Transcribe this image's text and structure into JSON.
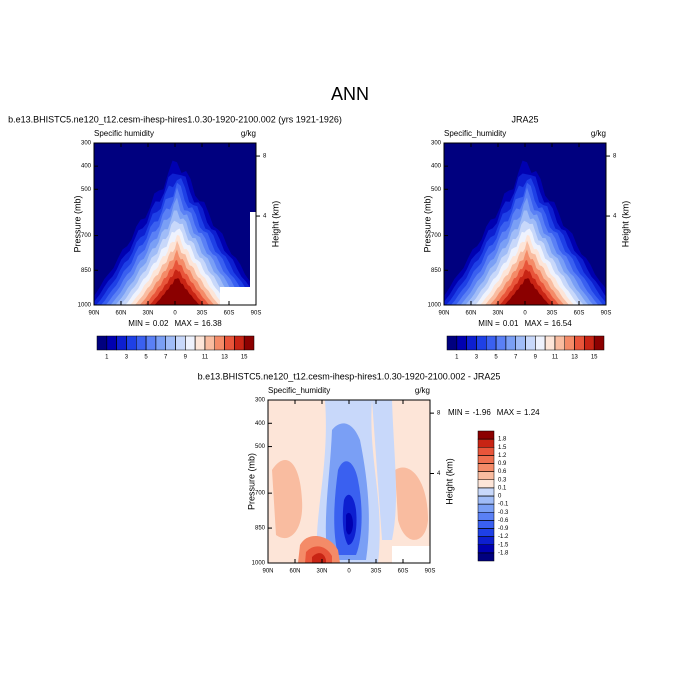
{
  "title": "ANN",
  "chart_data": [
    {
      "type": "contour",
      "title": "b.e13.BHISTC5.ne120_t12.cesm-ihesp-hires1.0.30-1920-2100.002 (yrs 1921-1926)",
      "left_label": "Specific humidity",
      "right_label": "g/kg",
      "ylabel": "Pressure (mb)",
      "y2label": "Height (km)",
      "xlim": [
        90,
        -90
      ],
      "xticks": [
        {
          "value": 90,
          "label": "90N"
        },
        {
          "value": 60,
          "label": "60N"
        },
        {
          "value": 30,
          "label": "30N"
        },
        0,
        {
          "value": -30,
          "label": "30S"
        },
        {
          "value": -60,
          "label": "60S"
        },
        {
          "value": -90,
          "label": "90S"
        }
      ],
      "ylim": [
        300,
        1000
      ],
      "yticks": [
        300,
        400,
        500,
        700,
        850,
        1000
      ],
      "y2lim": [
        8.87,
        -1.93
      ],
      "y2ticks": [
        8,
        4
      ],
      "min_label": "MIN =",
      "min": 0.02,
      "max_label": "MAX =",
      "max": 16.38,
      "colorbar": {
        "orientation": "horizontal",
        "levels": [
          1,
          2,
          3,
          4,
          5,
          6,
          7,
          8,
          9,
          10,
          11,
          12,
          13,
          14,
          15
        ],
        "ticks": [
          1,
          3,
          5,
          7,
          9,
          11,
          13,
          15
        ],
        "colors": [
          "#00007f",
          "#0000b0",
          "#0d1fd0",
          "#1e40e6",
          "#3a60f0",
          "#5a80f5",
          "#7a9ff5",
          "#a0bcf7",
          "#c8d8fa",
          "#eef2fd",
          "#fde5d8",
          "#f9bca0",
          "#f48b68",
          "#e8553a",
          "#c82414",
          "#8b0000"
        ]
      }
    },
    {
      "type": "contour",
      "title": "JRA25",
      "left_label": "Specific_humidity",
      "right_label": "g/kg",
      "ylabel": "Pressure (mb)",
      "y2label": "Height (km)",
      "xlim": [
        90,
        -90
      ],
      "xticks": [
        {
          "value": 90,
          "label": "90N"
        },
        {
          "value": 60,
          "label": "60N"
        },
        {
          "value": 30,
          "label": "30N"
        },
        0,
        {
          "value": -30,
          "label": "30S"
        },
        {
          "value": -60,
          "label": "60S"
        },
        {
          "value": -90,
          "label": "90S"
        }
      ],
      "ylim": [
        300,
        1000
      ],
      "yticks": [
        300,
        400,
        500,
        700,
        850,
        1000
      ],
      "y2lim": [
        8.87,
        -1.93
      ],
      "y2ticks": [
        8,
        4
      ],
      "min_label": "MIN =",
      "min": 0.01,
      "max_label": "MAX =",
      "max": 16.54,
      "colorbar": {
        "orientation": "horizontal",
        "levels": [
          1,
          2,
          3,
          4,
          5,
          6,
          7,
          8,
          9,
          10,
          11,
          12,
          13,
          14,
          15
        ],
        "ticks": [
          1,
          3,
          5,
          7,
          9,
          11,
          13,
          15
        ],
        "colors": [
          "#00007f",
          "#0000b0",
          "#0d1fd0",
          "#1e40e6",
          "#3a60f0",
          "#5a80f5",
          "#7a9ff5",
          "#a0bcf7",
          "#c8d8fa",
          "#eef2fd",
          "#fde5d8",
          "#f9bca0",
          "#f48b68",
          "#e8553a",
          "#c82414",
          "#8b0000"
        ]
      }
    },
    {
      "type": "contour",
      "title": "b.e13.BHISTC5.ne120_t12.cesm-ihesp-hires1.0.30-1920-2100.002 - JRA25",
      "left_label": "Specific_humidity",
      "right_label": "g/kg",
      "ylabel": "Pressure (mb)",
      "y2label": "Height (km)",
      "xlim": [
        90,
        -90
      ],
      "xticks": [
        {
          "value": 90,
          "label": "90N"
        },
        {
          "value": 60,
          "label": "60N"
        },
        {
          "value": 30,
          "label": "30N"
        },
        0,
        {
          "value": -30,
          "label": "30S"
        },
        {
          "value": -60,
          "label": "60S"
        },
        {
          "value": -90,
          "label": "90S"
        }
      ],
      "ylim": [
        300,
        1000
      ],
      "yticks": [
        300,
        400,
        500,
        700,
        850,
        1000
      ],
      "y2lim": [
        8.87,
        -1.93
      ],
      "y2ticks": [
        8,
        4
      ],
      "min_label": "MIN =",
      "min": -1.96,
      "max_label": "MAX =",
      "max": 1.24,
      "colorbar": {
        "orientation": "vertical",
        "ticks": [
          -1.8,
          -1.5,
          -1.2,
          -0.9,
          -0.6,
          -0.3,
          -0.1,
          0,
          0.1,
          0.3,
          0.6,
          0.9,
          1.2,
          1.5,
          1.8
        ],
        "colors": [
          "#00007f",
          "#0000b0",
          "#0d1fd0",
          "#1e40e6",
          "#3a60f0",
          "#5a80f5",
          "#7a9ff5",
          "#a0bcf7",
          "#c8d8fa",
          "#fde5d8",
          "#f9bca0",
          "#f48b68",
          "#ef7050",
          "#e8553a",
          "#c82414",
          "#8b0000"
        ]
      }
    }
  ]
}
